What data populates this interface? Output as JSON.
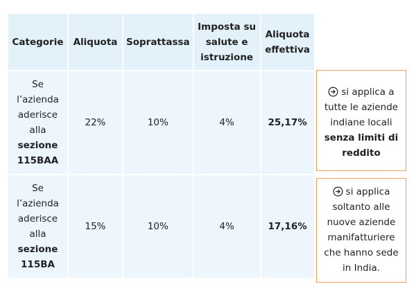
{
  "table": {
    "header": [
      "Categorie",
      "Aliquota",
      "Soprattassa",
      "Imposta su salute e istruzione",
      "Aliquota effettiva"
    ],
    "rows": [
      {
        "category": {
          "text": "Se l’azienda aderisce alla",
          "bold": "sezione 115BAA"
        },
        "cells": [
          "22%",
          "10%",
          "4%",
          "25,17%"
        ]
      },
      {
        "category": {
          "text": "Se l’azienda aderisce alla",
          "bold": "sezione 115BA"
        },
        "cells": [
          "15%",
          "10%",
          "4%",
          "17,16%"
        ]
      }
    ]
  },
  "notes": [
    {
      "text": "si applica a tutte le aziende indiane locali",
      "bold": "senza limiti di reddito"
    },
    {
      "text": "si applica soltanto alle nuove aziende manifatturiere che hanno sede in India."
    }
  ]
}
